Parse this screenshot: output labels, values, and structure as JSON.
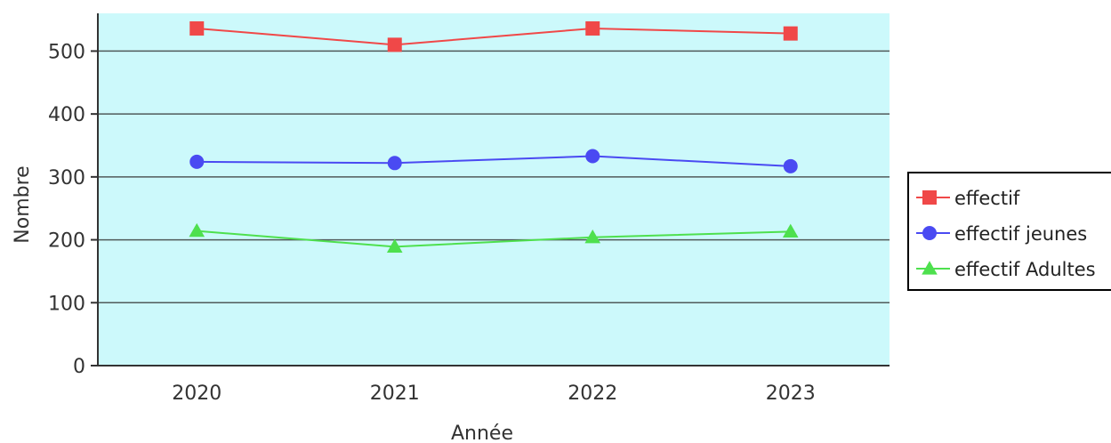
{
  "chart_data": {
    "type": "line",
    "title": "",
    "xlabel": "Année",
    "ylabel": "Nombre",
    "categories": [
      "2020",
      "2021",
      "2022",
      "2023"
    ],
    "ylim": [
      0,
      560
    ],
    "yticks": [
      0,
      100,
      200,
      300,
      400,
      500
    ],
    "grid": true,
    "legend_position": "right",
    "background_color": "#ccf9fb",
    "series": [
      {
        "name": "effectif",
        "values": [
          536,
          510,
          536,
          528
        ],
        "color": "#f04848",
        "marker": "square"
      },
      {
        "name": "effectif jeunes",
        "values": [
          324,
          322,
          333,
          317
        ],
        "color": "#4a4af2",
        "marker": "circle"
      },
      {
        "name": "effectif Adultes",
        "values": [
          214,
          189,
          204,
          213
        ],
        "color": "#4ee04e",
        "marker": "triangle"
      }
    ]
  }
}
